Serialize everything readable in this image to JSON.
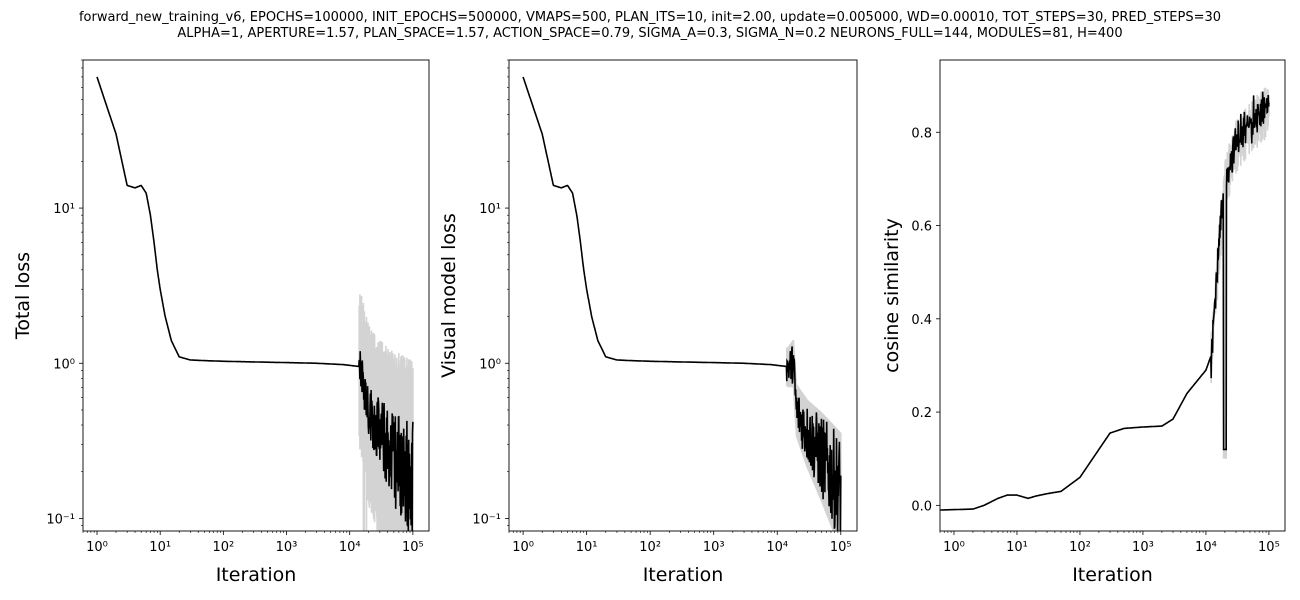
{
  "figure": {
    "title_line1": "forward_new_training_v6, EPOCHS=100000, INIT_EPOCHS=500000, VMAPS=500, PLAN_ITS=10, init=2.00, update=0.005000, WD=0.00010, TOT_STEPS=30, PRED_STEPS=30",
    "title_line2": "ALPHA=1, APERTURE=1.57, PLAN_SPACE=1.57, ACTION_SPACE=0.79, SIGMA_A=0.3, SIGMA_N=0.2 NEURONS_FULL=144, MODULES=81, H=400"
  },
  "chart_data": [
    {
      "type": "line",
      "title": "",
      "xlabel": "Iteration",
      "ylabel": "Total loss",
      "xscale": "log",
      "yscale": "log",
      "xlim": [
        0.6,
        180000
      ],
      "ylim": [
        0.083,
        90
      ],
      "xticks": [
        1,
        10,
        100,
        1000,
        10000,
        100000
      ],
      "yticks": [
        0.1,
        1,
        10
      ],
      "x": [
        1,
        2,
        3,
        4,
        5,
        6,
        7,
        8,
        9,
        10,
        12,
        15,
        20,
        30,
        50,
        100,
        300,
        1000,
        3000,
        8000,
        15000,
        20000,
        30000,
        50000,
        100000
      ],
      "mean": [
        70,
        30,
        14,
        13.5,
        14,
        12.5,
        9,
        6,
        4,
        3,
        2,
        1.4,
        1.1,
        1.05,
        1.04,
        1.03,
        1.02,
        1.01,
        1.0,
        0.98,
        0.95,
        0.5,
        0.35,
        0.25,
        0.17
      ],
      "variability": "high",
      "grid": false
    },
    {
      "type": "line",
      "title": "",
      "xlabel": "Iteration",
      "ylabel": "Visual model loss",
      "xscale": "log",
      "yscale": "log",
      "xlim": [
        0.6,
        180000
      ],
      "ylim": [
        0.083,
        90
      ],
      "xticks": [
        1,
        10,
        100,
        1000,
        10000,
        100000
      ],
      "yticks": [
        0.1,
        1,
        10
      ],
      "x": [
        1,
        2,
        3,
        4,
        5,
        6,
        7,
        8,
        9,
        10,
        12,
        15,
        20,
        30,
        50,
        100,
        300,
        1000,
        3000,
        8000,
        15000,
        18000,
        20000,
        30000,
        50000,
        100000
      ],
      "mean": [
        70,
        30,
        14,
        13.5,
        14,
        12.5,
        9,
        6,
        4,
        3,
        2,
        1.4,
        1.1,
        1.05,
        1.04,
        1.03,
        1.02,
        1.01,
        1.0,
        0.98,
        0.95,
        1.0,
        0.5,
        0.35,
        0.25,
        0.15
      ],
      "variability": "low",
      "grid": false
    },
    {
      "type": "line",
      "title": "",
      "xlabel": "Iteration",
      "ylabel": "cosine similarity",
      "xscale": "log",
      "yscale": "linear",
      "xlim": [
        0.6,
        180000
      ],
      "ylim": [
        -0.055,
        0.955
      ],
      "xticks": [
        1,
        10,
        100,
        1000,
        10000,
        100000
      ],
      "yticks": [
        0.0,
        0.2,
        0.4,
        0.6,
        0.8
      ],
      "x": [
        0.6,
        2,
        3,
        5,
        7,
        10,
        15,
        20,
        30,
        50,
        100,
        200,
        300,
        500,
        1000,
        2000,
        3000,
        5000,
        10000,
        12000,
        15000,
        20000,
        30000,
        50000,
        100000
      ],
      "mean": [
        -0.01,
        -0.008,
        0.0,
        0.015,
        0.022,
        0.022,
        0.015,
        0.02,
        0.025,
        0.03,
        0.06,
        0.12,
        0.155,
        0.165,
        0.168,
        0.17,
        0.185,
        0.24,
        0.29,
        0.32,
        0.5,
        0.7,
        0.78,
        0.82,
        0.86
      ],
      "variability": "medium",
      "grid": false
    }
  ]
}
